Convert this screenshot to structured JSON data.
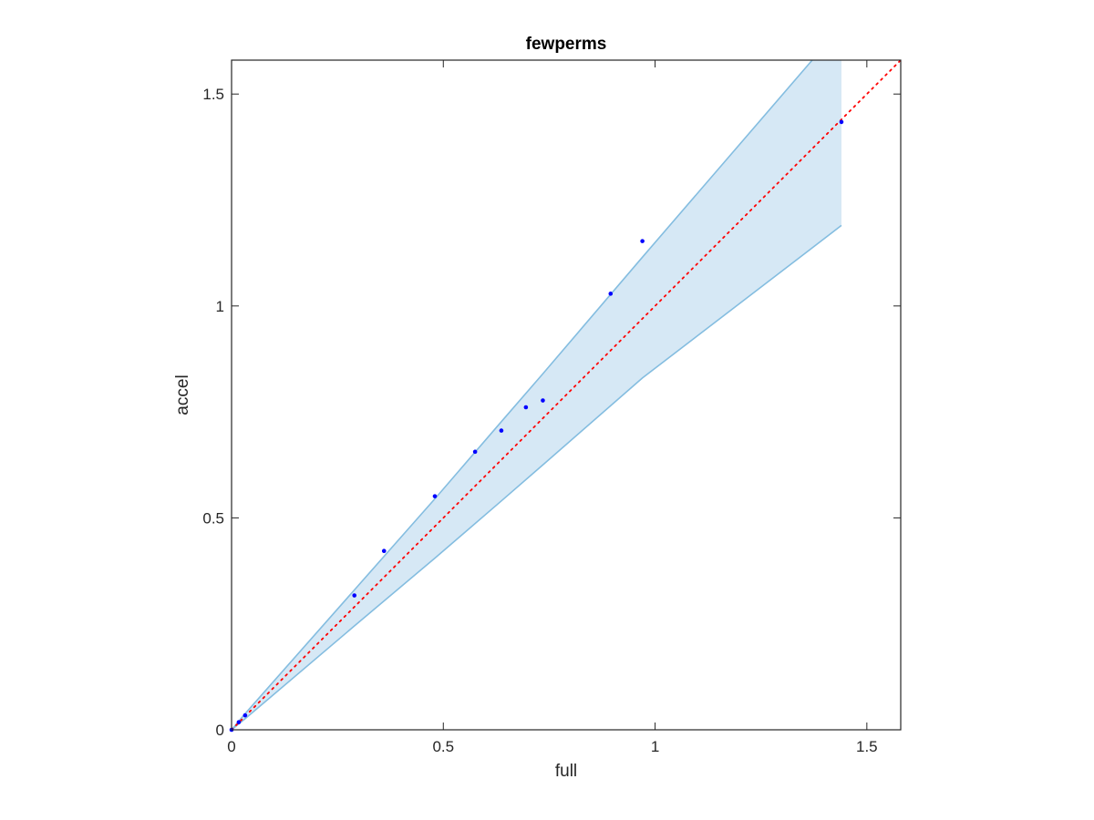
{
  "chart_data": {
    "type": "scatter",
    "title": "fewperms",
    "xlabel": "full",
    "ylabel": "accel",
    "xlim": [
      0,
      1.58
    ],
    "ylim": [
      0,
      1.58
    ],
    "xticks": [
      0,
      0.5,
      1,
      1.5
    ],
    "yticks": [
      0,
      0.5,
      1,
      1.5
    ],
    "xtick_labels": [
      "0",
      "0.5",
      "1",
      "1.5"
    ],
    "ytick_labels": [
      "0",
      "0.5",
      "1",
      "1.5"
    ],
    "grid": false,
    "points": {
      "x": [
        0.0,
        0.017,
        0.032,
        0.29,
        0.36,
        0.48,
        0.575,
        0.637,
        0.695,
        0.735,
        0.895,
        0.97,
        1.44
      ],
      "y": [
        0.0,
        0.018,
        0.034,
        0.317,
        0.422,
        0.551,
        0.656,
        0.706,
        0.761,
        0.777,
        1.029,
        1.153,
        1.434
      ]
    },
    "band": {
      "x": [
        0.0,
        0.032,
        0.29,
        0.48,
        0.637,
        0.735,
        0.97,
        1.44
      ],
      "upper": [
        0.0,
        0.038,
        0.33,
        0.545,
        0.727,
        0.84,
        1.115,
        1.66
      ],
      "lower": [
        0.0,
        0.026,
        0.245,
        0.405,
        0.54,
        0.625,
        0.83,
        1.19
      ]
    },
    "reference_line": {
      "x": [
        0,
        1.58
      ],
      "y": [
        0,
        1.58
      ],
      "style": "dotted"
    },
    "colors": {
      "points": "#0000ff",
      "band_fill": "#d6e8f5",
      "band_edge": "#84bde0",
      "reference_line": "#ff0000",
      "axes": "#262626"
    }
  }
}
